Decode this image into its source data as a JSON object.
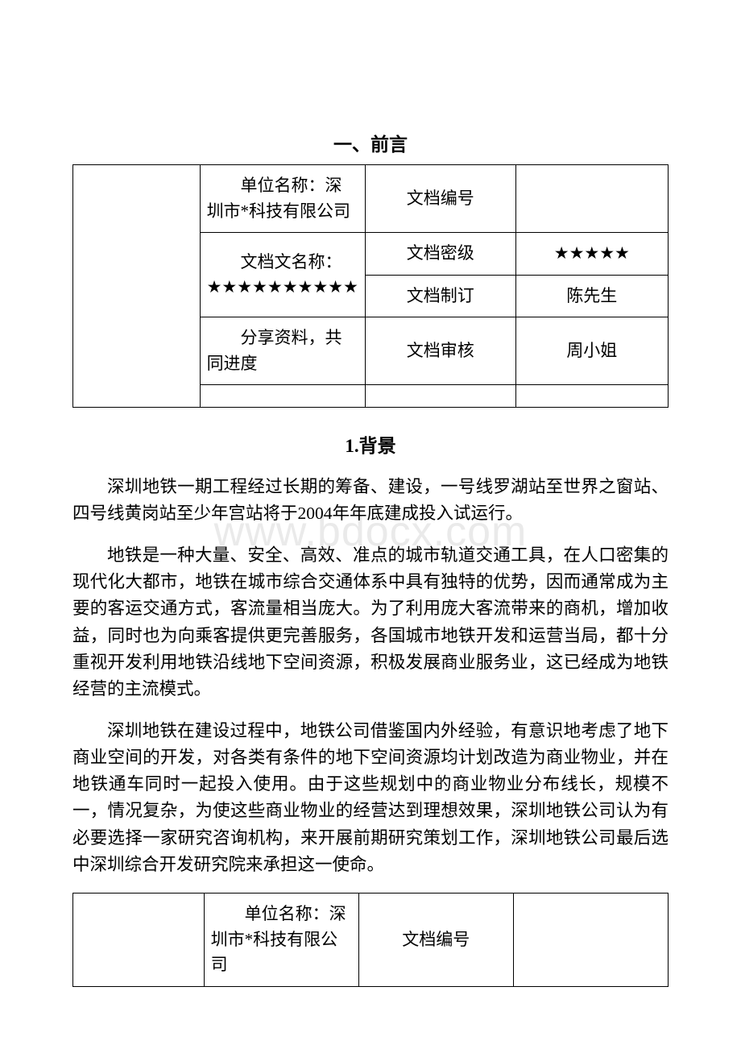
{
  "watermark": "www.bdocx.com",
  "heading1": "一、前言",
  "table1": {
    "rows": [
      {
        "b": "　　单位名称：深圳市*科技有限公司",
        "c": "文档编号",
        "d": ""
      },
      {
        "b": "　　文档文名称：",
        "c": "文档密级",
        "d": "★★★★★"
      },
      {
        "b": "★★★★★★★★★★",
        "c": "文档制订",
        "d": "陈先生"
      },
      {
        "b": "　　分享资料，共同进度",
        "c": "文档审核",
        "d": "周小姐"
      },
      {
        "b": "",
        "c": "",
        "d": ""
      }
    ]
  },
  "subheading1": "1.背景",
  "paragraphs": [
    "深圳地铁一期工程经过长期的筹备、建设，一号线罗湖站至世界之窗站、四号线黄岗站至少年宫站将于2004年年底建成投入试运行。",
    "地铁是一种大量、安全、高效、准点的城市轨道交通工具，在人口密集的现代化大都市，地铁在城市综合交通体系中具有独特的优势，因而通常成为主要的客运交通方式，客流量相当庞大。为了利用庞大客流带来的商机，增加收益，同时也为向乘客提供更完善服务，各国城市地铁开发和运营当局，都十分重视开发利用地铁沿线地下空间资源，积极发展商业服务业，这已经成为地铁经营的主流模式。",
    "深圳地铁在建设过程中，地铁公司借鉴国内外经验，有意识地考虑了地下商业空间的开发，对各类有条件的地下空间资源均计划改造为商业物业，并在地铁通车同时一起投入使用。由于这些规划中的商业物业分布线长，规模不一，情况复杂，为使这些商业物业的经营达到理想效果，深圳地铁公司认为有必要选择一家研究咨询机构，来开展前期研究策划工作，深圳地铁公司最后选中深圳综合开发研究院来承担这一使命。"
  ],
  "table2": {
    "rows": [
      {
        "b": "　　单位名称：深圳市*科技有限公司",
        "c": "文档编号",
        "d": ""
      }
    ]
  }
}
